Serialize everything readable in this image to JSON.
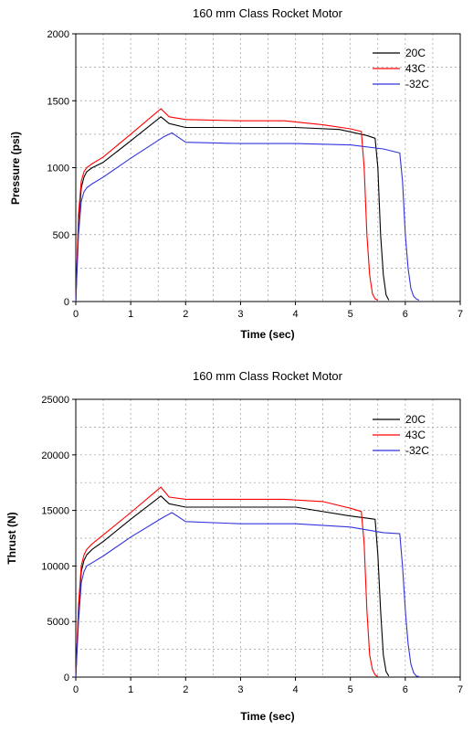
{
  "chart_data": [
    {
      "type": "line",
      "title": "160 mm Class Rocket Motor",
      "xlabel": "Time (sec)",
      "ylabel": "Pressure (psi)",
      "xlim": [
        0,
        7
      ],
      "ylim": [
        0,
        2000
      ],
      "xticks": [
        "0",
        "1",
        "2",
        "3",
        "4",
        "5",
        "6",
        "7"
      ],
      "yticks": [
        "0",
        "500",
        "1000",
        "1500",
        "2000"
      ],
      "grid": true,
      "legend_position": "top-right",
      "series": [
        {
          "name": "20C",
          "color": "#000000",
          "x": [
            0,
            0.05,
            0.1,
            0.15,
            0.2,
            0.3,
            0.5,
            1.0,
            1.55,
            1.7,
            2.0,
            3.0,
            4.0,
            4.8,
            5.3,
            5.45,
            5.5,
            5.55,
            5.6,
            5.65,
            5.7
          ],
          "y": [
            0,
            600,
            850,
            930,
            970,
            1000,
            1040,
            1200,
            1380,
            1330,
            1300,
            1300,
            1300,
            1285,
            1240,
            1220,
            1000,
            500,
            200,
            50,
            10
          ]
        },
        {
          "name": "43C",
          "color": "#ff0000",
          "x": [
            0,
            0.05,
            0.1,
            0.15,
            0.2,
            0.3,
            0.5,
            1.0,
            1.55,
            1.7,
            2.0,
            3.0,
            3.8,
            4.5,
            5.0,
            5.2,
            5.25,
            5.3,
            5.35,
            5.4,
            5.45,
            5.5
          ],
          "y": [
            0,
            650,
            900,
            970,
            1000,
            1030,
            1080,
            1250,
            1440,
            1380,
            1360,
            1350,
            1350,
            1320,
            1290,
            1270,
            1000,
            500,
            200,
            60,
            20,
            10
          ]
        },
        {
          "name": "-32C",
          "color": "#3333dd",
          "x": [
            0,
            0.05,
            0.1,
            0.15,
            0.2,
            0.3,
            0.5,
            1.0,
            1.6,
            1.75,
            2.0,
            3.0,
            4.0,
            5.0,
            5.6,
            5.9,
            5.95,
            6.0,
            6.05,
            6.1,
            6.15,
            6.2,
            6.25
          ],
          "y": [
            0,
            500,
            750,
            820,
            850,
            880,
            930,
            1070,
            1230,
            1260,
            1190,
            1180,
            1180,
            1170,
            1140,
            1110,
            900,
            500,
            250,
            100,
            40,
            20,
            10
          ]
        }
      ]
    },
    {
      "type": "line",
      "title": "160 mm Class Rocket Motor",
      "xlabel": "Time (sec)",
      "ylabel": "Thrust (N)",
      "xlim": [
        0,
        7
      ],
      "ylim": [
        0,
        25000
      ],
      "xticks": [
        "0",
        "1",
        "2",
        "3",
        "4",
        "5",
        "6",
        "7"
      ],
      "yticks": [
        "0",
        "5000",
        "10000",
        "15000",
        "20000",
        "25000"
      ],
      "grid": true,
      "legend_position": "top-right",
      "series": [
        {
          "name": "20C",
          "color": "#000000",
          "x": [
            0,
            0.05,
            0.1,
            0.15,
            0.2,
            0.3,
            0.5,
            1.0,
            1.55,
            1.7,
            2.0,
            3.0,
            4.0,
            5.0,
            5.3,
            5.45,
            5.5,
            5.55,
            5.6,
            5.65,
            5.7
          ],
          "y": [
            0,
            6000,
            9500,
            10500,
            11000,
            11500,
            12200,
            14200,
            16300,
            15600,
            15300,
            15300,
            15300,
            14500,
            14300,
            14200,
            11000,
            6000,
            2000,
            500,
            100
          ]
        },
        {
          "name": "43C",
          "color": "#ff0000",
          "x": [
            0,
            0.05,
            0.1,
            0.15,
            0.2,
            0.3,
            0.5,
            1.0,
            1.55,
            1.7,
            2.0,
            3.0,
            3.8,
            4.5,
            5.0,
            5.2,
            5.25,
            5.3,
            5.35,
            5.4,
            5.45,
            5.5
          ],
          "y": [
            0,
            6500,
            10000,
            11000,
            11500,
            12000,
            12800,
            14800,
            17100,
            16200,
            16000,
            16000,
            16000,
            15800,
            15200,
            14900,
            12000,
            6000,
            2000,
            700,
            200,
            50
          ]
        },
        {
          "name": "-32C",
          "color": "#3333dd",
          "x": [
            0,
            0.05,
            0.1,
            0.15,
            0.2,
            0.3,
            0.5,
            1.0,
            1.6,
            1.75,
            2.0,
            3.0,
            4.0,
            5.0,
            5.6,
            5.9,
            5.95,
            6.0,
            6.05,
            6.1,
            6.15,
            6.2,
            6.25
          ],
          "y": [
            0,
            5000,
            8500,
            9500,
            10000,
            10300,
            10900,
            12600,
            14400,
            14800,
            14000,
            13800,
            13800,
            13500,
            13000,
            12900,
            10000,
            6000,
            3000,
            1200,
            400,
            100,
            50
          ]
        }
      ]
    }
  ]
}
